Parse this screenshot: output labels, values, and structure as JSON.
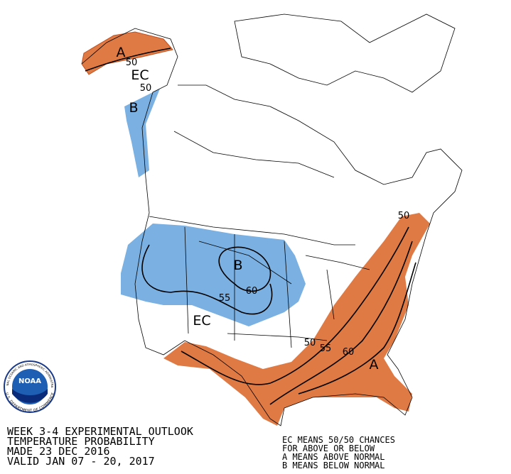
{
  "map": {
    "labels": [
      {
        "text": "A"
      },
      {
        "text": "50"
      },
      {
        "text": "EC"
      },
      {
        "text": "50"
      },
      {
        "text": "B"
      },
      {
        "text": "B"
      },
      {
        "text": "55"
      },
      {
        "text": "60"
      },
      {
        "text": "EC"
      },
      {
        "text": "50"
      },
      {
        "text": "55"
      },
      {
        "text": "60"
      },
      {
        "text": "A"
      },
      {
        "text": "50"
      }
    ]
  },
  "logo": {
    "name": "NOAA",
    "top_text": "NATIONAL OCEANIC AND ATMOSPHERIC ADMINISTRATION",
    "bottom_text": "U.S. DEPARTMENT OF COMMERCE"
  },
  "title_block": {
    "lines": [
      "WEEK 3-4 EXPERIMENTAL OUTLOOK",
      "TEMPERATURE PROBABILITY",
      "MADE  23 DEC 2016",
      "VALID  JAN 07 - 20, 2017"
    ]
  },
  "legend": {
    "lines": [
      "EC MEANS 50/50 CHANCES",
      "FOR ABOVE OR BELOW",
      "A MEANS ABOVE NORMAL",
      "B MEANS BELOW NORMAL"
    ]
  }
}
